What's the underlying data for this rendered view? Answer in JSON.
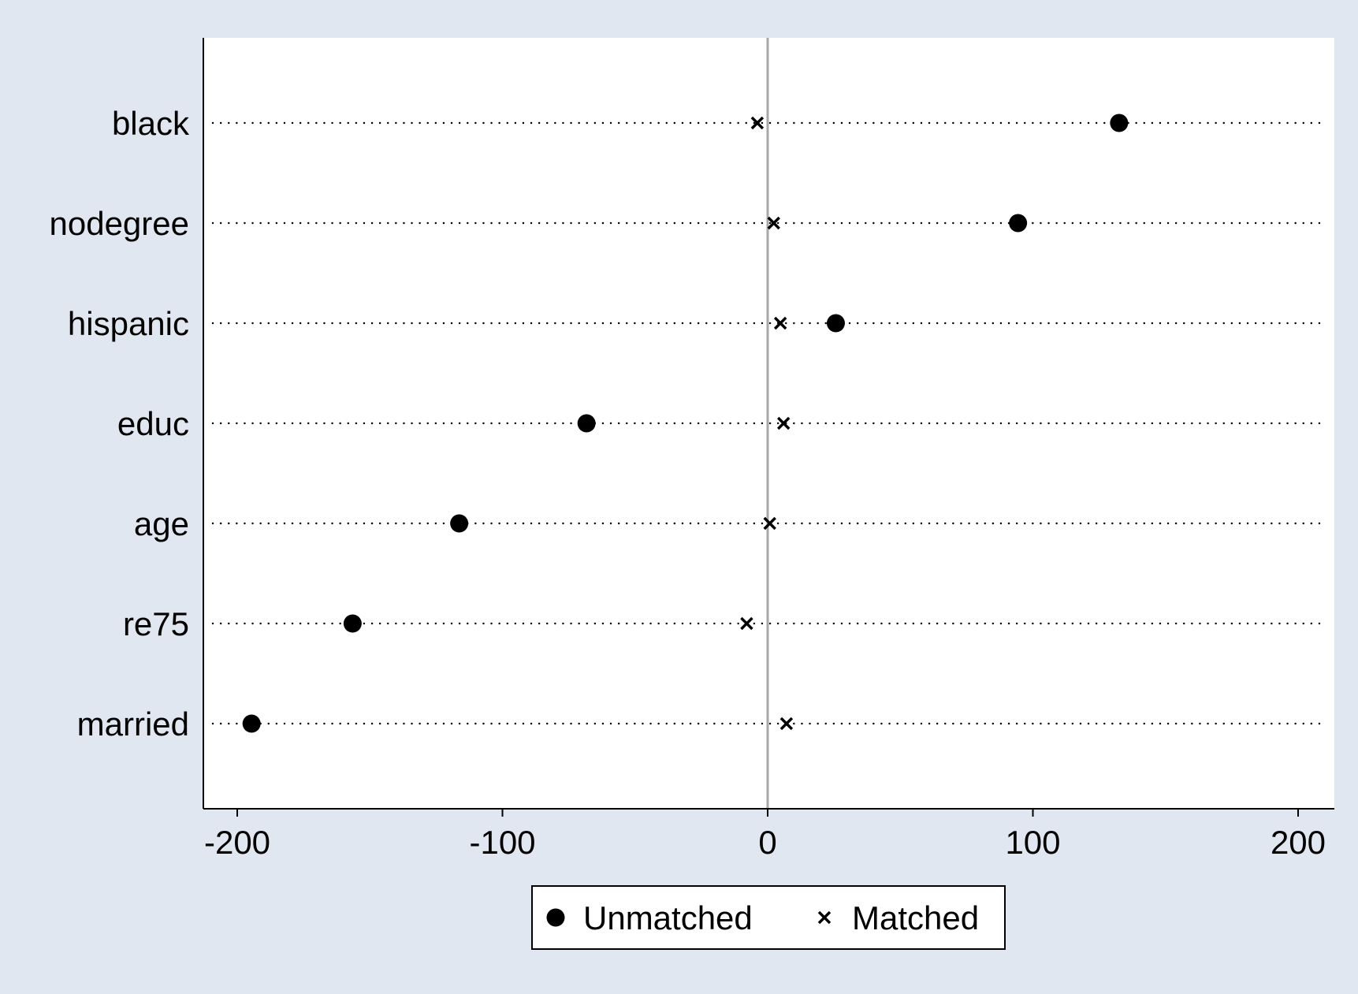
{
  "chart_data": {
    "type": "scatter",
    "title": "",
    "xlabel": "",
    "ylabel": "",
    "categories": [
      "black",
      "nodegree",
      "hispanic",
      "educ",
      "age",
      "re75",
      "married"
    ],
    "series": [
      {
        "name": "Unmatched",
        "marker": "filled-circle",
        "values": [
          132.5,
          94.4,
          25.7,
          -68.3,
          -116.3,
          -156.5,
          -194.6
        ]
      },
      {
        "name": "Matched",
        "marker": "x",
        "values": [
          -3.9,
          2.3,
          4.8,
          6.0,
          0.8,
          -7.9,
          7.1
        ]
      }
    ],
    "xlim": [
      -212,
      212
    ],
    "x_ticks": [
      -200,
      -100,
      0,
      100,
      200
    ],
    "x_tick_labels": [
      "-200",
      "-100",
      "0",
      "100",
      "200"
    ],
    "reference_line_x": 0,
    "row_guides": "dotted",
    "grid": false,
    "legend": {
      "position": "bottom",
      "entries": [
        "Unmatched",
        "Matched"
      ]
    },
    "colors": {
      "outer_background": "#e1e7f1",
      "plot_background": "#ffffff",
      "markers": "#000000",
      "reference_line": "#a8a8a8",
      "axis": "#000000"
    }
  }
}
